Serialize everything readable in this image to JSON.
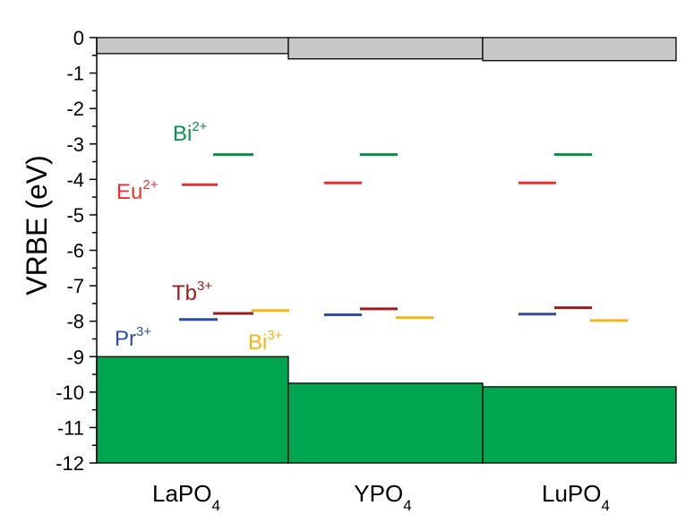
{
  "chart_data": {
    "type": "bar",
    "title": "",
    "ylabel": "VRBE (eV)",
    "xlabel": "",
    "ylim": [
      -12,
      0
    ],
    "yticks": [
      0,
      -1,
      -2,
      -3,
      -4,
      -5,
      -6,
      -7,
      -8,
      -9,
      -10,
      -11,
      -12
    ],
    "categories": [
      {
        "base": "LaPO",
        "sub": "4"
      },
      {
        "base": "YPO",
        "sub": "4"
      },
      {
        "base": "LuPO",
        "sub": "4"
      }
    ],
    "conduction_band_bottom": [
      -0.45,
      -0.6,
      -0.65
    ],
    "valence_band_top": [
      -9.0,
      -9.75,
      -9.85
    ],
    "series": [
      {
        "name": "Bi",
        "charge": "2+",
        "color": "#0a8f46",
        "values": [
          -3.3,
          -3.3,
          -3.3
        ]
      },
      {
        "name": "Eu",
        "charge": "2+",
        "color": "#e8312e",
        "values": [
          -4.15,
          -4.1,
          -4.1
        ]
      },
      {
        "name": "Tb",
        "charge": "3+",
        "color": "#9b1c1c",
        "values": [
          -7.78,
          -7.65,
          -7.62
        ]
      },
      {
        "name": "Pr",
        "charge": "3+",
        "color": "#2e4ea6",
        "values": [
          -7.95,
          -7.82,
          -7.8
        ]
      },
      {
        "name": "Bi",
        "charge": "3+",
        "color": "#f5b512",
        "values": [
          -7.7,
          -7.9,
          -7.98
        ]
      }
    ],
    "colors": {
      "conduction_band": "#c8c8c8",
      "valence_band": "#00a54f"
    }
  }
}
